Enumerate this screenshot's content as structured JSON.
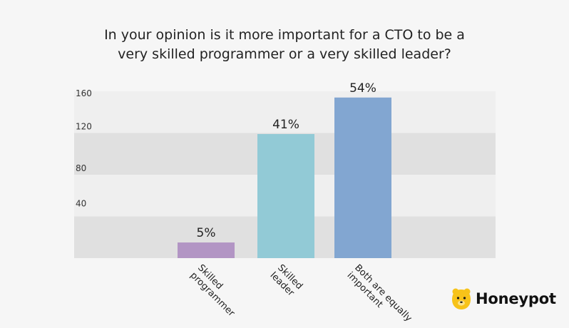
{
  "title_lines": [
    "In your opinion is it more important for a CTO to be a",
    "very skilled programmer or a very skilled leader?"
  ],
  "brand": {
    "name": "Honeypot",
    "logo_icon": "bear-icon",
    "logo_color": "#f7c319"
  },
  "chart_data": {
    "type": "bar",
    "categories": [
      [
        "Skilled",
        "programmer"
      ],
      [
        "Skilled",
        "leader"
      ],
      [
        "Both are equally",
        "important"
      ]
    ],
    "values": [
      15,
      119,
      154
    ],
    "labels": [
      "5%",
      "41%",
      "54%"
    ],
    "colors": [
      "#b295c4",
      "#92cad6",
      "#82a6d1"
    ],
    "yticks": [
      40,
      80,
      120,
      160
    ],
    "ylim": [
      0,
      160
    ],
    "band_colors": [
      "#e0e0e0",
      "#efefef"
    ],
    "grid": true,
    "legend": "none"
  }
}
